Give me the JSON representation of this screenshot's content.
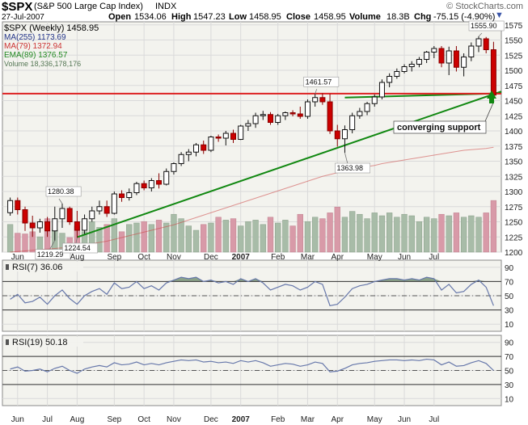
{
  "header": {
    "symbol": "$SPX",
    "name": "(S&P 500 Large Cap Index)",
    "exchange": "INDX",
    "copyright": "© StockCharts.com",
    "date": "27-Jul-2007",
    "open_label": "Open",
    "open": "1534.06",
    "high_label": "High",
    "high": "1547.23",
    "low_label": "Low",
    "low": "1458.95",
    "close_label": "Close",
    "close": "1458.95",
    "volume_label": "Volume",
    "volume": "18.3B",
    "chg_label": "Chg",
    "chg": "-75.15 (-4.90%)"
  },
  "legend": {
    "price": "$SPX (Weekly) 1458.95",
    "ma255": "MA(255) 1173.69",
    "ma79": "MA(79) 1372.94",
    "ema89": "EMA(89) 1376.57",
    "volume": "Volume 18,336,178,176"
  },
  "colors": {
    "up": "#1a1a1a",
    "down": "#cc0000",
    "ma79": "#cc4444",
    "ema89": "#228822",
    "ma255": "#223388",
    "vol_up": "#a8bca8",
    "vol_down": "#d89aa8",
    "panel_bg": "#f3f3ee",
    "grid": "#dadada",
    "rsi_line": "#6677aa",
    "rsi_fill": "#789478",
    "support": "#118811",
    "resistance": "#dd2222",
    "arrow": "#118811"
  },
  "x_labels": [
    "Jun",
    "Jul",
    "Aug",
    "Sep",
    "Oct",
    "Nov",
    "Dec",
    "2007",
    "Feb",
    "Mar",
    "Apr",
    "May",
    "Jun",
    "Jul"
  ],
  "annotations": {
    "c1280": "1280.38",
    "c1219": "1219.29",
    "c1224": "1224.54",
    "c1461": "1461.57",
    "c1363": "1363.98",
    "c1555": "1555.90",
    "converging": "converging support"
  },
  "chart_data": [
    {
      "type": "candlestick",
      "title": "$SPX (Weekly) 1458.95",
      "ylim": [
        1200,
        1580
      ],
      "y_ticks": [
        1200,
        1225,
        1250,
        1275,
        1300,
        1325,
        1350,
        1375,
        1400,
        1425,
        1450,
        1475,
        1500,
        1525,
        1550,
        1575
      ],
      "candles": [
        [
          1265,
          1290,
          1260,
          1285
        ],
        [
          1285,
          1290,
          1262,
          1270
        ],
        [
          1270,
          1275,
          1235,
          1248
        ],
        [
          1248,
          1260,
          1225,
          1240
        ],
        [
          1240,
          1255,
          1232,
          1250
        ],
        [
          1250,
          1258,
          1225,
          1235
        ],
        [
          1235,
          1275,
          1219,
          1255
        ],
        [
          1255,
          1280,
          1240,
          1272
        ],
        [
          1272,
          1275,
          1245,
          1250
        ],
        [
          1250,
          1268,
          1224,
          1236
        ],
        [
          1236,
          1262,
          1230,
          1255
        ],
        [
          1255,
          1275,
          1250,
          1268
        ],
        [
          1268,
          1285,
          1262,
          1275
        ],
        [
          1275,
          1285,
          1258,
          1264
        ],
        [
          1264,
          1300,
          1262,
          1296
        ],
        [
          1296,
          1302,
          1283,
          1290
        ],
        [
          1290,
          1305,
          1285,
          1298
        ],
        [
          1298,
          1316,
          1294,
          1313
        ],
        [
          1313,
          1318,
          1302,
          1306
        ],
        [
          1306,
          1322,
          1300,
          1318
        ],
        [
          1318,
          1330,
          1305,
          1312
        ],
        [
          1312,
          1338,
          1310,
          1333
        ],
        [
          1333,
          1348,
          1328,
          1346
        ],
        [
          1346,
          1365,
          1342,
          1361
        ],
        [
          1361,
          1370,
          1350,
          1365
        ],
        [
          1365,
          1380,
          1358,
          1377
        ],
        [
          1377,
          1384,
          1362,
          1368
        ],
        [
          1368,
          1392,
          1365,
          1390
        ],
        [
          1390,
          1394,
          1382,
          1388
        ],
        [
          1388,
          1400,
          1376,
          1396
        ],
        [
          1396,
          1402,
          1380,
          1386
        ],
        [
          1386,
          1410,
          1385,
          1408
        ],
        [
          1408,
          1418,
          1400,
          1412
        ],
        [
          1412,
          1430,
          1405,
          1425
        ],
        [
          1425,
          1433,
          1418,
          1427
        ],
        [
          1427,
          1431,
          1410,
          1414
        ],
        [
          1414,
          1428,
          1410,
          1425
        ],
        [
          1425,
          1432,
          1418,
          1430
        ],
        [
          1430,
          1434,
          1424,
          1428
        ],
        [
          1428,
          1440,
          1420,
          1424
        ],
        [
          1424,
          1452,
          1420,
          1448
        ],
        [
          1448,
          1461,
          1440,
          1455
        ],
        [
          1455,
          1462,
          1443,
          1448
        ],
        [
          1448,
          1461,
          1395,
          1400
        ],
        [
          1400,
          1410,
          1374,
          1387
        ],
        [
          1387,
          1409,
          1364,
          1402
        ],
        [
          1402,
          1430,
          1396,
          1425
        ],
        [
          1425,
          1438,
          1420,
          1432
        ],
        [
          1432,
          1448,
          1426,
          1445
        ],
        [
          1445,
          1460,
          1440,
          1456
        ],
        [
          1456,
          1485,
          1452,
          1480
        ],
        [
          1480,
          1495,
          1472,
          1490
        ],
        [
          1490,
          1503,
          1486,
          1498
        ],
        [
          1498,
          1510,
          1495,
          1506
        ],
        [
          1506,
          1515,
          1498,
          1510
        ],
        [
          1510,
          1522,
          1505,
          1518
        ],
        [
          1518,
          1532,
          1512,
          1530
        ],
        [
          1530,
          1540,
          1520,
          1536
        ],
        [
          1536,
          1540,
          1505,
          1512
        ],
        [
          1512,
          1539,
          1492,
          1532
        ],
        [
          1532,
          1540,
          1498,
          1505
        ],
        [
          1505,
          1528,
          1490,
          1522
        ],
        [
          1522,
          1546,
          1515,
          1540
        ],
        [
          1540,
          1556,
          1530,
          1552
        ],
        [
          1552,
          1555,
          1528,
          1534
        ],
        [
          1534,
          1547,
          1459,
          1459
        ]
      ],
      "volume": {
        "ylim": [
          0,
          1
        ],
        "values": [
          0.38,
          0.26,
          0.25,
          0.28,
          0.21,
          0.46,
          0.31,
          0.26,
          0.2,
          0.36,
          0.28,
          0.42,
          0.34,
          0.38,
          0.46,
          0.28,
          0.38,
          0.4,
          0.42,
          0.38,
          0.44,
          0.4,
          0.52,
          0.46,
          0.36,
          0.3,
          0.38,
          0.4,
          0.48,
          0.44,
          0.46,
          0.36,
          0.42,
          0.44,
          0.38,
          0.48,
          0.4,
          0.44,
          0.36,
          0.52,
          0.42,
          0.48,
          0.46,
          0.54,
          0.62,
          0.48,
          0.56,
          0.52,
          0.46,
          0.54,
          0.5,
          0.54,
          0.48,
          0.52,
          0.5,
          0.42,
          0.48,
          0.46,
          0.52,
          0.5,
          0.54,
          0.48,
          0.5,
          0.48,
          0.54,
          0.71
        ]
      },
      "ma79_values": [
        1200,
        1201,
        1202,
        1203,
        1204,
        1205,
        1206,
        1207,
        1208,
        1210,
        1212,
        1214,
        1216,
        1218,
        1221,
        1224,
        1227,
        1230,
        1233,
        1236,
        1239,
        1242,
        1245,
        1249,
        1253,
        1257,
        1261,
        1265,
        1269,
        1273,
        1277,
        1281,
        1285,
        1289,
        1293,
        1297,
        1301,
        1305,
        1309,
        1313,
        1317,
        1321,
        1325,
        1328,
        1331,
        1334,
        1337,
        1339,
        1341,
        1343,
        1346,
        1348,
        1350,
        1352,
        1354,
        1356,
        1358,
        1360,
        1362,
        1364,
        1366,
        1368,
        1369,
        1370,
        1371,
        1373
      ],
      "lines": [
        {
          "name": "support",
          "from": [
            9,
            1224.54
          ],
          "to": [
            66,
            1465
          ]
        },
        {
          "name": "support2",
          "from": [
            45,
            1455
          ],
          "to": [
            66,
            1462
          ]
        },
        {
          "name": "resistance",
          "from": [
            0,
            1461.57
          ],
          "to": [
            66,
            1461.57
          ]
        }
      ]
    },
    {
      "type": "line",
      "title": "RSI(7) 36.06",
      "ylim": [
        0,
        100
      ],
      "y_ticks": [
        10,
        30,
        50,
        70,
        90
      ],
      "levels": [
        30,
        50,
        70
      ],
      "values": [
        45,
        52,
        40,
        42,
        48,
        38,
        50,
        58,
        46,
        38,
        50,
        56,
        60,
        52,
        68,
        60,
        62,
        70,
        60,
        64,
        58,
        68,
        72,
        76,
        74,
        76,
        70,
        72,
        68,
        70,
        66,
        74,
        70,
        74,
        68,
        58,
        62,
        66,
        64,
        58,
        62,
        70,
        66,
        36,
        38,
        48,
        60,
        64,
        66,
        70,
        72,
        74,
        74,
        72,
        74,
        72,
        76,
        74,
        58,
        66,
        54,
        56,
        66,
        72,
        62,
        36
      ]
    },
    {
      "type": "line",
      "title": "RSI(19) 50.18",
      "ylim": [
        0,
        100
      ],
      "y_ticks": [
        10,
        30,
        50,
        70,
        90
      ],
      "levels": [
        30,
        50,
        70
      ],
      "values": [
        52,
        55,
        49,
        50,
        52,
        48,
        53,
        56,
        50,
        46,
        52,
        55,
        57,
        55,
        61,
        58,
        59,
        62,
        58,
        60,
        58,
        61,
        63,
        65,
        64,
        65,
        62,
        63,
        61,
        62,
        60,
        64,
        62,
        64,
        61,
        56,
        58,
        60,
        59,
        56,
        58,
        62,
        60,
        48,
        49,
        53,
        58,
        60,
        61,
        63,
        64,
        65,
        65,
        64,
        65,
        64,
        66,
        65,
        58,
        62,
        56,
        57,
        61,
        64,
        60,
        50
      ]
    }
  ]
}
